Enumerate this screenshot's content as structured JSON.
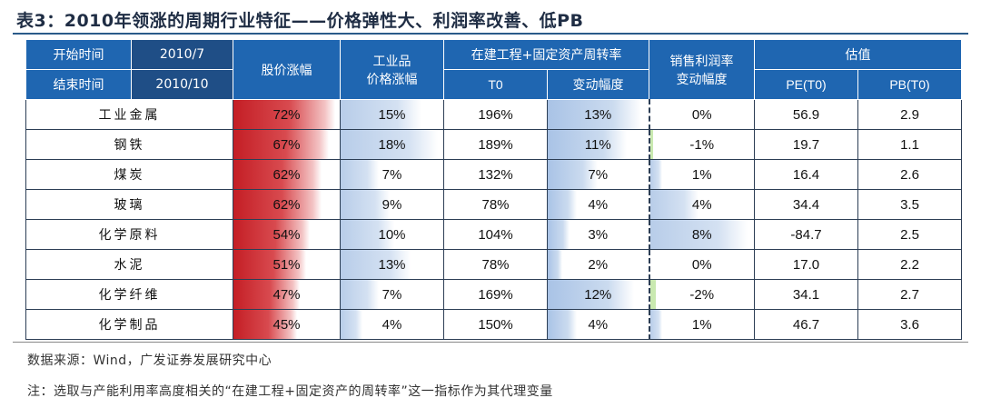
{
  "title": "表3：2010年领涨的周期行业特征——价格弹性大、利润率改善、低PB",
  "header": {
    "start_label": "开始时间",
    "start_value": "2010/7",
    "end_label": "结束时间",
    "end_value": "2010/10",
    "stock_rise": "股价涨幅",
    "industrial_price_line1": "工业品",
    "industrial_price_line2": "价格涨幅",
    "turnover_group": "在建工程+固定资产周转率",
    "t0": "T0",
    "change_range": "变动幅度",
    "margin_line1": "销售利润率",
    "margin_line2": "变动幅度",
    "valuation": "估值",
    "pe": "PE(T0)",
    "pb": "PB(T0)"
  },
  "rows": [
    {
      "name": "工业金属",
      "stock": "72%",
      "stock_v": 72,
      "price": "15%",
      "price_v": 15,
      "t0": "196%",
      "chg": "13%",
      "chg_v": 13,
      "margin": "0%",
      "margin_v": 0,
      "pe": "56.9",
      "pb": "2.9"
    },
    {
      "name": "钢铁",
      "stock": "67%",
      "stock_v": 67,
      "price": "18%",
      "price_v": 18,
      "t0": "189%",
      "chg": "11%",
      "chg_v": 11,
      "margin": "-1%",
      "margin_v": -1,
      "pe": "19.7",
      "pb": "1.1"
    },
    {
      "name": "煤炭",
      "stock": "62%",
      "stock_v": 62,
      "price": "7%",
      "price_v": 7,
      "t0": "132%",
      "chg": "7%",
      "chg_v": 7,
      "margin": "1%",
      "margin_v": 1,
      "pe": "16.4",
      "pb": "2.6"
    },
    {
      "name": "玻璃",
      "stock": "62%",
      "stock_v": 62,
      "price": "9%",
      "price_v": 9,
      "t0": "78%",
      "chg": "4%",
      "chg_v": 4,
      "margin": "4%",
      "margin_v": 4,
      "pe": "34.4",
      "pb": "3.5"
    },
    {
      "name": "化学原料",
      "stock": "54%",
      "stock_v": 54,
      "price": "10%",
      "price_v": 10,
      "t0": "104%",
      "chg": "3%",
      "chg_v": 3,
      "margin": "8%",
      "margin_v": 8,
      "pe": "-84.7",
      "pb": "2.5"
    },
    {
      "name": "水泥",
      "stock": "51%",
      "stock_v": 51,
      "price": "13%",
      "price_v": 13,
      "t0": "78%",
      "chg": "2%",
      "chg_v": 2,
      "margin": "0%",
      "margin_v": 0,
      "pe": "17.0",
      "pb": "2.2"
    },
    {
      "name": "化学纤维",
      "stock": "47%",
      "stock_v": 47,
      "price": "7%",
      "price_v": 7,
      "t0": "169%",
      "chg": "12%",
      "chg_v": 12,
      "margin": "-2%",
      "margin_v": -2,
      "pe": "34.1",
      "pb": "2.7"
    },
    {
      "name": "化学制品",
      "stock": "45%",
      "stock_v": 45,
      "price": "4%",
      "price_v": 4,
      "t0": "150%",
      "chg": "4%",
      "chg_v": 4,
      "margin": "1%",
      "margin_v": 1,
      "pe": "46.7",
      "pb": "3.6"
    }
  ],
  "source": "数据来源：Wind，广发证券发展研究中心",
  "note": "注：选取与产能利用率高度相关的“在建工程+固定资产的周转率”这一指标作为其代理变量",
  "colors": {
    "header_blue": "#1f66b1",
    "header_dark": "#1f4e86",
    "red_bar": "#c41e25",
    "blue_bar": "#b8cde9",
    "green_bar": "#c9e9b0"
  }
}
